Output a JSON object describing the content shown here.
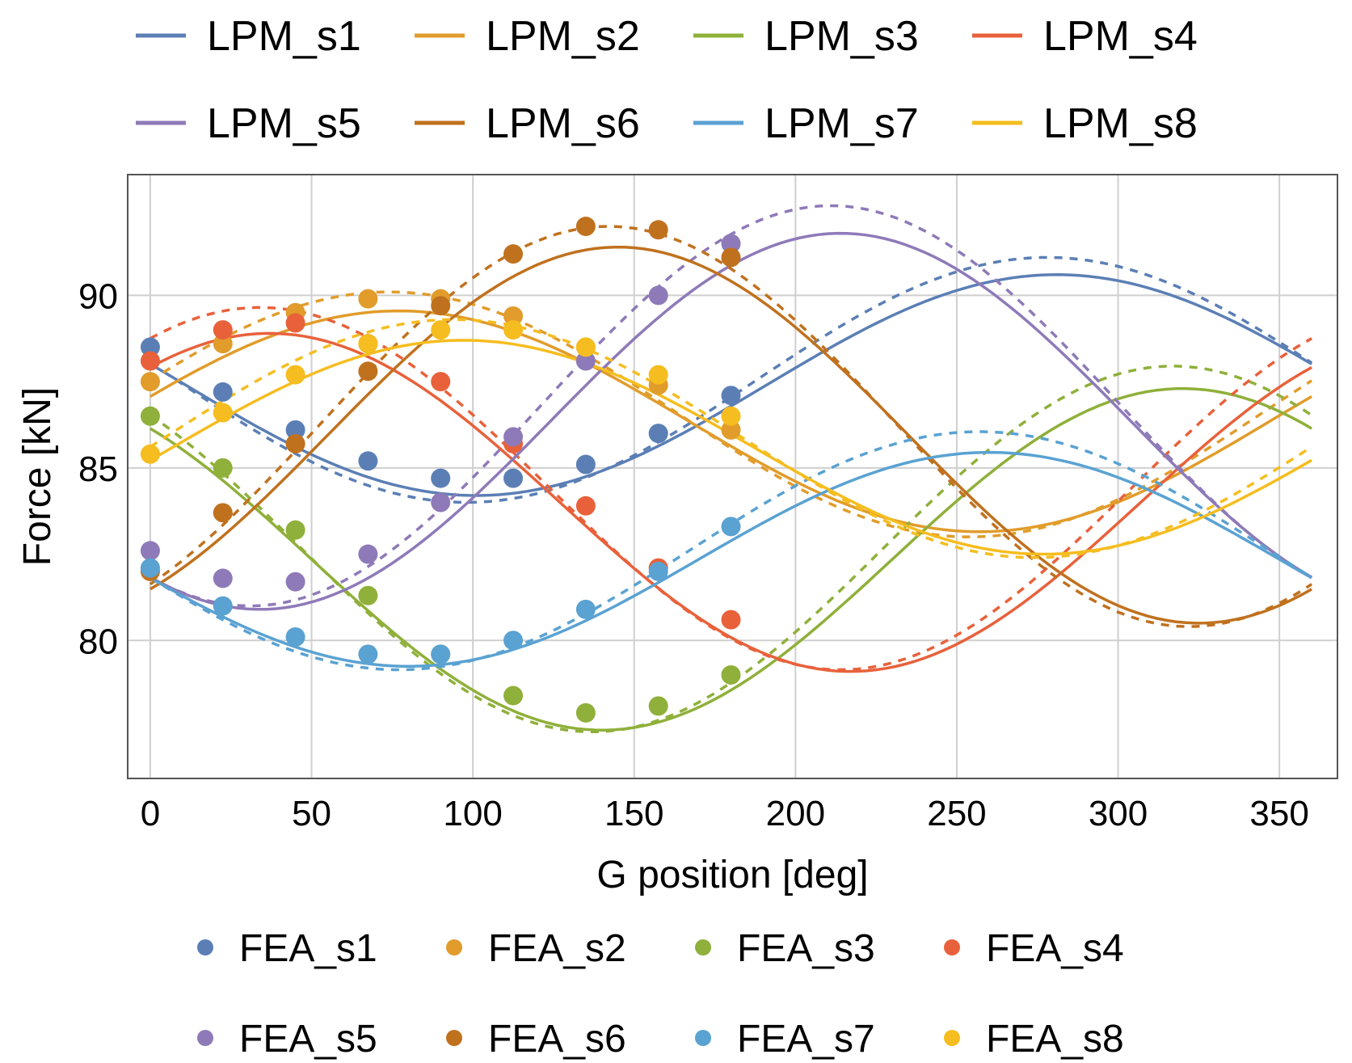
{
  "chart_data": {
    "type": "line",
    "title": "",
    "xlabel": "G position [deg]",
    "ylabel": "Force [kN]",
    "xlim": [
      -7,
      368
    ],
    "ylim": [
      76,
      93.5
    ],
    "xticks": [
      0,
      50,
      100,
      150,
      200,
      250,
      300,
      350
    ],
    "yticks": [
      80,
      85,
      90
    ],
    "grid": true,
    "legend_top": [
      "LPM_s1",
      "LPM_s2",
      "LPM_s3",
      "LPM_s4",
      "LPM_s5",
      "LPM_s6",
      "LPM_s7",
      "LPM_s8"
    ],
    "legend_bottom": [
      "FEA_s1",
      "FEA_s2",
      "FEA_s3",
      "FEA_s4",
      "FEA_s5",
      "FEA_s6",
      "FEA_s7",
      "FEA_s8"
    ],
    "fea_x": [
      0,
      22.5,
      45,
      67.5,
      90,
      112.5,
      135,
      157.5,
      180
    ],
    "series": [
      {
        "name": "s1",
        "color": "#5b7fb5",
        "lpm": {
          "mean": 87.4,
          "amp": 3.2,
          "phase": 281,
          "offset": 0.15
        },
        "fea": [
          88.5,
          87.2,
          86.1,
          85.2,
          84.7,
          84.7,
          85.1,
          86.0,
          87.1
        ]
      },
      {
        "name": "s2",
        "color": "#e19c2b",
        "lpm": {
          "mean": 86.35,
          "amp": 3.2,
          "phase": 77,
          "offset": 0.2
        },
        "fea": [
          87.5,
          88.6,
          89.5,
          89.9,
          89.9,
          89.4,
          88.5,
          87.4,
          86.1
        ]
      },
      {
        "name": "s3",
        "color": "#8fb03a",
        "lpm": {
          "mean": 82.35,
          "amp": 4.95,
          "phase": 320,
          "offset": 0.3
        },
        "fea": [
          86.5,
          85.0,
          83.2,
          81.3,
          79.6,
          78.4,
          77.9,
          78.1,
          79.0
        ]
      },
      {
        "name": "s4",
        "color": "#e8613b",
        "lpm": {
          "mean": 84.0,
          "amp": 4.9,
          "phase": 37,
          "offset": 0.4
        },
        "fea": [
          88.1,
          89.0,
          89.2,
          88.6,
          87.5,
          85.7,
          83.9,
          82.1,
          80.6
        ]
      },
      {
        "name": "s5",
        "color": "#8e7ab8",
        "lpm": {
          "mean": 86.35,
          "amp": 5.45,
          "phase": 214,
          "offset": 0.45
        },
        "fea": [
          82.6,
          81.8,
          81.7,
          82.5,
          84.0,
          85.9,
          88.1,
          90.0,
          91.5
        ]
      },
      {
        "name": "s6",
        "color": "#c0711e",
        "lpm": {
          "mean": 85.95,
          "amp": 5.45,
          "phase": 145,
          "offset": 0.25
        },
        "fea": [
          82.0,
          83.7,
          85.7,
          87.8,
          89.7,
          91.2,
          92.0,
          91.9,
          91.1
        ]
      },
      {
        "name": "s7",
        "color": "#5aa2d2",
        "lpm": {
          "mean": 82.35,
          "amp": 3.1,
          "phase": 260,
          "offset": 0.25
        },
        "fea": [
          82.1,
          81.0,
          80.1,
          79.6,
          79.6,
          80.0,
          80.9,
          82.0,
          83.3
        ]
      },
      {
        "name": "s8",
        "color": "#f5bd1f",
        "lpm": {
          "mean": 85.6,
          "amp": 3.1,
          "phase": 97,
          "offset": 0.25
        },
        "fea": [
          85.4,
          86.6,
          87.7,
          88.6,
          89.0,
          89.0,
          88.5,
          87.7,
          86.5
        ]
      }
    ]
  }
}
